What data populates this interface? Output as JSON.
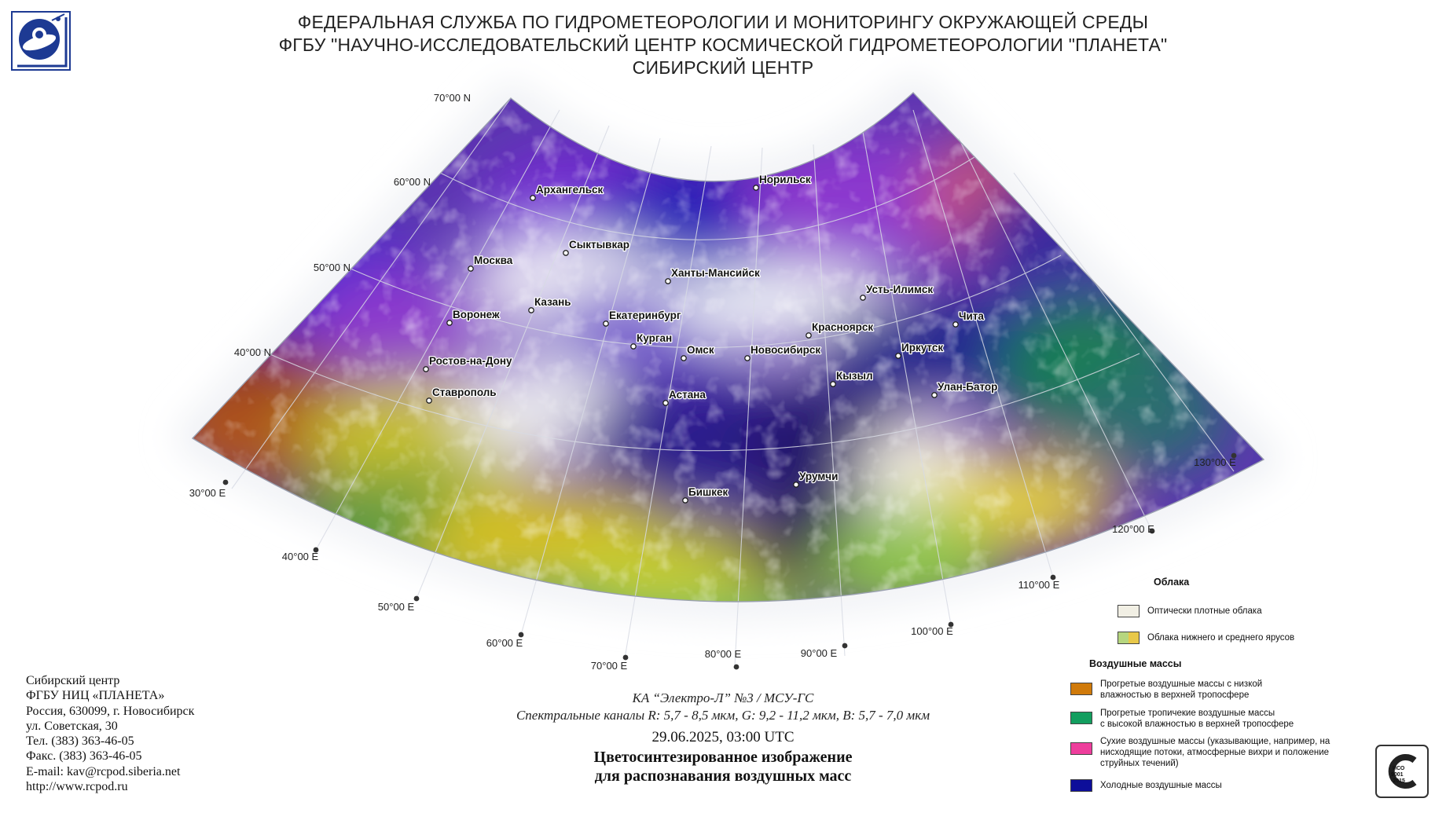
{
  "header": {
    "line1": "ФЕДЕРАЛЬНАЯ СЛУЖБА ПО ГИДРОМЕТЕОРОЛОГИИ И МОНИТОРИНГУ ОКРУЖАЮЩЕЙ СРЕДЫ",
    "line2": "ФГБУ \"НАУЧНО-ИССЛЕДОВАТЕЛЬСКИЙ ЦЕНТР КОСМИЧЕСКОЙ ГИДРОМЕТЕОРОЛОГИИ \"ПЛАНЕТА\"",
    "line3": "СИБИРСКИЙ ЦЕНТР"
  },
  "map": {
    "lat_labels": [
      "70°00 N",
      "60°00 N",
      "50°00 N",
      "40°00 N"
    ],
    "lon_labels": [
      "30°00 E",
      "40°00 E",
      "50°00 E",
      "60°00 E",
      "70°00 E",
      "80°00 E",
      "90°00 E",
      "100°00 E",
      "110°00 E",
      "120°00 E",
      "130°00 E"
    ],
    "cities": [
      {
        "name": "Архангельск"
      },
      {
        "name": "Норильск"
      },
      {
        "name": "Сыктывкар"
      },
      {
        "name": "Москва"
      },
      {
        "name": "Ханты-Мансийск"
      },
      {
        "name": "Усть-Илимск"
      },
      {
        "name": "Казань"
      },
      {
        "name": "Воронеж"
      },
      {
        "name": "Екатеринбург"
      },
      {
        "name": "Красноярск"
      },
      {
        "name": "Чита"
      },
      {
        "name": "Курган"
      },
      {
        "name": "Омск"
      },
      {
        "name": "Новосибирск"
      },
      {
        "name": "Иркутск"
      },
      {
        "name": "Ростов-на-Дону"
      },
      {
        "name": "Кызыл"
      },
      {
        "name": "Улан-Батор"
      },
      {
        "name": "Ставрополь"
      },
      {
        "name": "Астана"
      },
      {
        "name": "Урумчи"
      },
      {
        "name": "Бишкек"
      }
    ]
  },
  "contact": {
    "line1": "Сибирский центр",
    "line2": "ФГБУ НИЦ «ПЛАНЕТА»",
    "line3": "Россия, 630099, г. Новосибирск",
    "line4": "ул. Советская, 30",
    "line5": "Тел. (383) 363-46-05",
    "line6": "Факс. (383) 363-46-05",
    "line7": "E-mail: kav@rcpod.siberia.net",
    "line8": "http://www.rcpod.ru"
  },
  "product": {
    "satellite": "КА “Электро-Л” №3 / МСУ-ГС",
    "channels": "Спектральные каналы R: 5,7 - 8,5 мкм, G: 9,2 - 11,2 мкм, B: 5,7 - 7,0 мкм",
    "datetime": "29.06.2025, 03:00 UTC",
    "title_line1": "Цветосинтезированное изображение",
    "title_line2": "для распознавания воздушных масс"
  },
  "legend": {
    "clouds_heading": "Облака",
    "clouds": [
      {
        "label": "Оптически плотные облака",
        "colors": [
          "#f1efe4"
        ]
      },
      {
        "label": "Облака нижнего и среднего ярусов",
        "colors": [
          "#b6d67f",
          "#e8c84a"
        ]
      }
    ],
    "air_heading": "Воздушные массы",
    "air": [
      {
        "label_lines": [
          "Прогретые воздушные массы с низкой",
          "влажностью в верхней тропосфере"
        ],
        "color": "#d07a0a"
      },
      {
        "label_lines": [
          "Прогретые тропичекие воздушные массы",
          "с высокой влажностью в верхней тропосфере"
        ],
        "color": "#139e5f"
      },
      {
        "label_lines": [
          "Сухие воздушные массы (указывающие, например, на",
          "нисходящие потоки, атмосферные вихри и положение",
          "струйных течений)"
        ],
        "color": "#ee3e9c"
      },
      {
        "label_lines": [
          "Холодные воздушные массы"
        ],
        "color": "#0d0e9a"
      }
    ]
  }
}
